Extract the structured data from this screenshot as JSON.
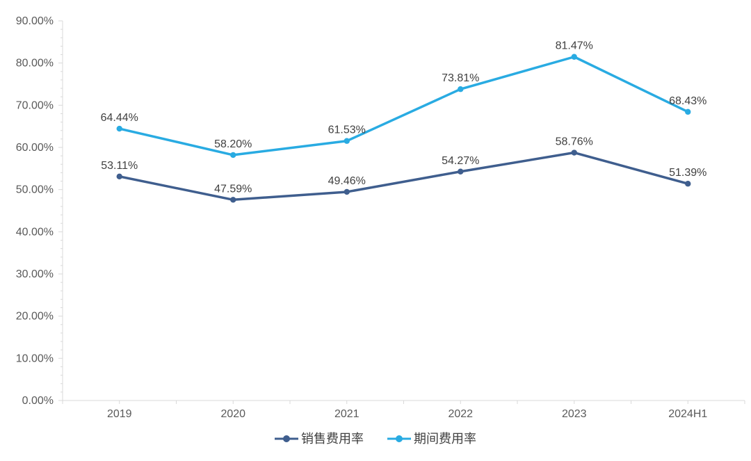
{
  "chart_data": {
    "type": "line",
    "title": "",
    "categories": [
      "2019",
      "2020",
      "2021",
      "2022",
      "2023",
      "2024H1"
    ],
    "series": [
      {
        "name": "销售费用率",
        "color": "#3F5E8E",
        "values": [
          53.11,
          47.59,
          49.46,
          54.27,
          58.76,
          51.39
        ],
        "labels": [
          "53.11%",
          "47.59%",
          "49.46%",
          "54.27%",
          "58.76%",
          "51.39%"
        ]
      },
      {
        "name": "期间费用率",
        "color": "#29ABE2",
        "values": [
          64.44,
          58.2,
          61.53,
          73.81,
          81.47,
          68.43
        ],
        "labels": [
          "64.44%",
          "58.20%",
          "61.53%",
          "73.81%",
          "81.47%",
          "68.43%"
        ]
      }
    ],
    "ylim": [
      0,
      90
    ],
    "y_tick_step": 10,
    "y_minor_tick_step": 2,
    "y_tick_labels": [
      "0.00%",
      "10.00%",
      "20.00%",
      "30.00%",
      "40.00%",
      "50.00%",
      "60.00%",
      "70.00%",
      "80.00%",
      "90.00%"
    ],
    "grid": false,
    "legend_position": "bottom",
    "colors": {
      "axis_line": "#D9D9D9",
      "tick_mark": "#D9D9D9",
      "axis_label": "#595959",
      "data_label": "#404040"
    }
  }
}
